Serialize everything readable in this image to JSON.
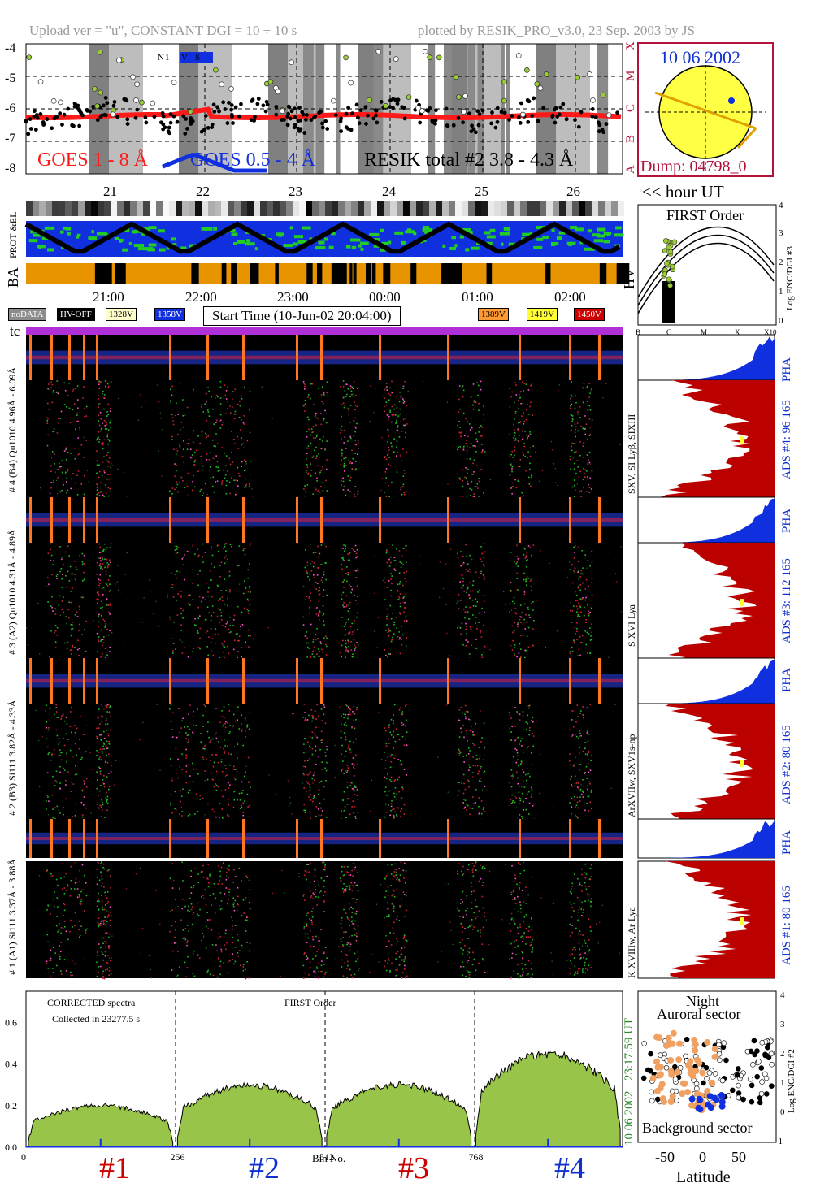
{
  "header": {
    "left": "Upload ver = \"u\", CONSTANT  DGI =  10 ÷  10 s",
    "right": "plotted by RESIK_PRO_v3.0, 23 Sep. 2003 by JS"
  },
  "goes_panel": {
    "ylabels": [
      "-4",
      "-5",
      "-6",
      "-7",
      "-8"
    ],
    "class_labels": [
      "X",
      "M",
      "C",
      "B",
      "A"
    ],
    "legend": {
      "goes_long": "GOES 1 - 8 Å",
      "goes_short": "GOES 0.5 - 4 Å",
      "resik": "RESIK total #2  3.8 - 4.3 Å"
    },
    "marker": {
      "n": "N",
      "n1": "1",
      "v": "V",
      "s": "S"
    },
    "day_ticks": [
      "21",
      "22",
      "23",
      "24",
      "25",
      "26"
    ],
    "hour_unit": "<< hour UT",
    "colors": {
      "goes_long": "#ff1a1a",
      "goes_short": "#1030e0",
      "resik": "#000000",
      "night": "#7f7f7f",
      "saa": "#b8b8b8"
    }
  },
  "sun_panel": {
    "date": "10 06 2002",
    "dump": "Dump: 04798_0",
    "sun_color": "#ffff44",
    "border_color": "#b3123a"
  },
  "status_panel": {
    "prot_el_label": "PROT &EL",
    "ba_label": "BA",
    "hv_label": "HV",
    "time_ticks": [
      "21:00",
      "22:00",
      "23:00",
      "00:00",
      "01:00",
      "02:00"
    ],
    "legend_boxes": [
      {
        "text": "noDATA",
        "bg": "#8c8c8c",
        "fg": "#ffffff"
      },
      {
        "text": "HV-OFF",
        "bg": "#000000",
        "fg": "#ffffff"
      },
      {
        "text": "1328V",
        "bg": "#ffffcc",
        "fg": "#000000"
      },
      {
        "text": "1358V",
        "bg": "#1030e0",
        "fg": "#ffffff"
      },
      {
        "text": "1389V",
        "bg": "#ff9933",
        "fg": "#000000"
      },
      {
        "text": "1419V",
        "bg": "#ffff33",
        "fg": "#000000"
      },
      {
        "text": "1450V",
        "bg": "#cc0000",
        "fg": "#ffffff"
      }
    ],
    "start_time": "Start Time (10-Jun-02 20:04:00)",
    "tc_label": "tc"
  },
  "first_order_panel": {
    "title": "FIRST Order",
    "yticks": [
      "4",
      "3",
      "2",
      "1",
      "0"
    ],
    "xticks": [
      "B",
      "C",
      "M",
      "X",
      "X10"
    ],
    "ylabel": "Log ENC/DGI #3"
  },
  "spectra_labels": {
    "ch4": "# 4 (B4) Qu1010 4.96Å - 6.09Å",
    "ch3": "# 3 (A2) Qu1010  4.31Å - 4.89Å",
    "ch2": "# 2 (B3) Si111  3.82Å - 4.33Å",
    "ch1": "# 1 (A1) Si111  3.37Å - 3.88Å"
  },
  "line_labels": {
    "ch4": "SXV, SI Lyβ, SIXIII",
    "ch3": "S XVI Lya",
    "ch2": "ArXVIIw, SXV1s-np",
    "ch1": "K XVIIIw, Ar Lya"
  },
  "ads_labels": {
    "ch4": "ADS #4:   96 165",
    "ch3": "ADS #3:  112 165",
    "ch2": "ADS #2:   80 165",
    "ch1": "ADS #1:   80 165",
    "pha": "PHA"
  },
  "bottom_spectra": {
    "corrected": "CORRECTED spectra",
    "collected": "Collected in 23277.5 s",
    "order": "FIRST Order",
    "yticks": [
      "0.6",
      "0.4",
      "0.2",
      "0.0"
    ],
    "xticks": [
      "0",
      "256",
      "512",
      "768"
    ],
    "xlabel": "Bin No.",
    "channels": [
      "#1",
      "#2",
      "#3",
      "#4"
    ],
    "time_stamp": "23:17:59 UT",
    "date_stamp": "10 06 2002"
  },
  "latitude_panel": {
    "night": "Night",
    "auroral": "Auroral sector",
    "background": "Background sector",
    "xticks": [
      "-50",
      "0",
      "50"
    ],
    "yticks": [
      "4",
      "3",
      "2",
      "1",
      "0",
      "-1"
    ],
    "xlabel": "Latitude",
    "ylabel": "Log ENC/DGI #2"
  },
  "chart_data": {
    "type": "line",
    "title": "",
    "xlabel": "Bin No.",
    "ylabel": "",
    "xlim": [
      0,
      1024
    ],
    "ylim": [
      0,
      0.75
    ],
    "channel_ranges": [
      [
        0,
        256
      ],
      [
        256,
        512
      ],
      [
        512,
        768
      ],
      [
        768,
        1024
      ]
    ],
    "channel_levels": [
      0.2,
      0.3,
      0.3,
      0.45
    ]
  }
}
